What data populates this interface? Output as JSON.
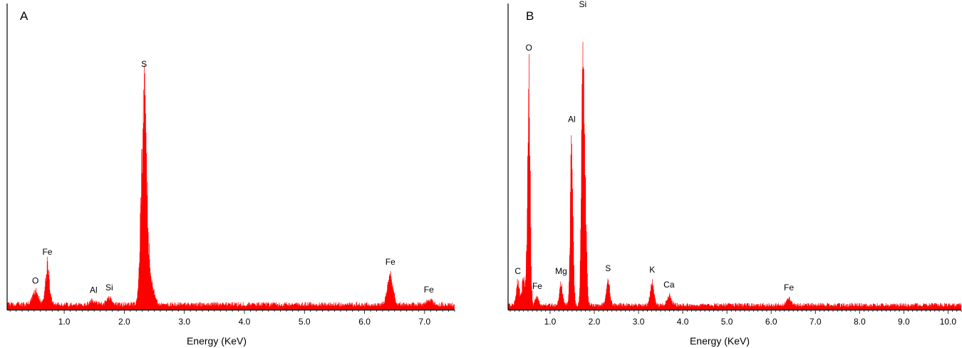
{
  "chart_data": [
    {
      "type": "line",
      "panel_label": "A",
      "xlabel": "Energy (KeV)",
      "ylabel": "",
      "xlim": [
        0.05,
        7.5
      ],
      "ylim": [
        0,
        100
      ],
      "grid": false,
      "color": "#ff0000",
      "xticks": [
        "1.0",
        "2.0",
        "3.0",
        "4.0",
        "5.0",
        "6.0",
        "7.0"
      ],
      "baseline": 2,
      "peaks": [
        {
          "label": "O",
          "x": 0.52,
          "height": 5.5,
          "width": 0.05
        },
        {
          "label": "Fe",
          "x": 0.72,
          "height": 17,
          "width": 0.035
        },
        {
          "label": "Al",
          "x": 1.49,
          "height": 1.8,
          "width": 0.05
        },
        {
          "label": "Si",
          "x": 1.75,
          "height": 2.8,
          "width": 0.05
        },
        {
          "label": "S",
          "x": 2.33,
          "height": 92,
          "width": 0.045
        },
        {
          "label": "Fe",
          "x": 6.43,
          "height": 13,
          "width": 0.045
        },
        {
          "label": "Fe",
          "x": 7.07,
          "height": 2,
          "width": 0.05
        }
      ],
      "extra_shoulders": [
        {
          "x": 2.45,
          "height": 8,
          "width": 0.05
        }
      ]
    },
    {
      "type": "line",
      "panel_label": "B",
      "xlabel": "Energy (KeV)",
      "ylabel": "",
      "xlim": [
        0.05,
        10.3
      ],
      "ylim": [
        0,
        100
      ],
      "grid": false,
      "color": "#ff0000",
      "xticks": [
        "1.0",
        "2.0",
        "3.0",
        "4.0",
        "5.0",
        "6.0",
        "7.0",
        "8.0",
        "9.0",
        "10.0"
      ],
      "baseline": 1.5,
      "peaks": [
        {
          "label": "C",
          "x": 0.27,
          "height": 8,
          "width": 0.035
        },
        {
          "label": "O",
          "x": 0.52,
          "height": 83,
          "width": 0.03
        },
        {
          "label": "Fe",
          "x": 0.71,
          "height": 3,
          "width": 0.04
        },
        {
          "label": "Mg",
          "x": 1.25,
          "height": 8,
          "width": 0.035
        },
        {
          "label": "Al",
          "x": 1.49,
          "height": 59,
          "width": 0.03
        },
        {
          "label": "Si",
          "x": 1.74,
          "height": 97,
          "width": 0.03
        },
        {
          "label": "S",
          "x": 2.31,
          "height": 9,
          "width": 0.04
        },
        {
          "label": "K",
          "x": 3.31,
          "height": 8.5,
          "width": 0.04
        },
        {
          "label": "Ca",
          "x": 3.69,
          "height": 3.5,
          "width": 0.05
        },
        {
          "label": "Fe",
          "x": 6.4,
          "height": 2.5,
          "width": 0.05
        }
      ],
      "extra_shoulders": [
        {
          "x": 0.4,
          "height": 9,
          "width": 0.04
        },
        {
          "x": 1.8,
          "height": 30,
          "width": 0.03
        }
      ]
    }
  ]
}
